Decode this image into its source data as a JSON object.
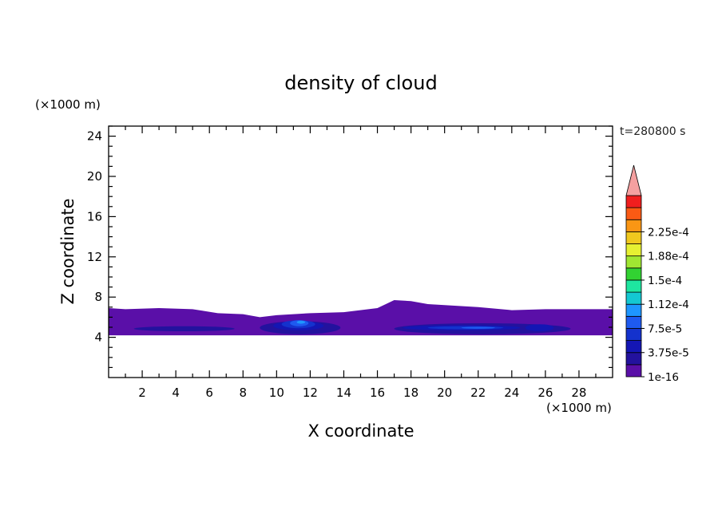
{
  "chart_data": {
    "type": "heatmap",
    "title": "density of cloud",
    "xlabel": "X coordinate",
    "ylabel": "Z coordinate",
    "x_unit": "(×1000 m)",
    "y_unit": "(×1000 m)",
    "time_label": "t=280800 s",
    "xlim": [
      0,
      30
    ],
    "ylim": [
      0,
      25
    ],
    "x_ticks": [
      "2",
      "4",
      "6",
      "8",
      "10",
      "12",
      "14",
      "16",
      "18",
      "20",
      "22",
      "24",
      "26",
      "28"
    ],
    "y_ticks": [
      "4",
      "8",
      "12",
      "16",
      "20",
      "24"
    ],
    "colorbar": {
      "labels": [
        "1e-16",
        "3.75e-5",
        "7.5e-5",
        "1.12e-4",
        "1.5e-4",
        "1.88e-4",
        "2.25e-4"
      ],
      "levels": [
        1e-16,
        1.875e-05,
        3.75e-05,
        5.625e-05,
        7.5e-05,
        9.375e-05,
        0.0001125,
        0.00013125,
        0.00015,
        0.00016875,
        0.0001875,
        0.00020625,
        0.000225,
        0.00024375
      ],
      "colors": [
        "#5a0fa8",
        "#23129e",
        "#1416b4",
        "#1432cd",
        "#1e5af0",
        "#1e96ff",
        "#14c8d2",
        "#1ee6a0",
        "#32d232",
        "#a0e632",
        "#e6f032",
        "#f0c81e",
        "#fa9614",
        "#fa5a14",
        "#f01e1e"
      ],
      "extend_max_color": "#f5a0a0"
    },
    "cloud_layer": {
      "z_base": 4.2,
      "z_top_profile": {
        "x": [
          0,
          1,
          3,
          5,
          6.5,
          8,
          9,
          10,
          12,
          14,
          16,
          17,
          18,
          19,
          20,
          22,
          24,
          26,
          28,
          30
        ],
        "z": [
          6.9,
          6.8,
          6.9,
          6.8,
          6.4,
          6.3,
          6.0,
          6.2,
          6.4,
          6.5,
          6.9,
          7.7,
          7.6,
          7.3,
          7.2,
          7.0,
          6.7,
          6.8,
          6.8,
          6.8
        ]
      },
      "max_density_location": {
        "x": 11.5,
        "z": 5.5
      }
    }
  }
}
